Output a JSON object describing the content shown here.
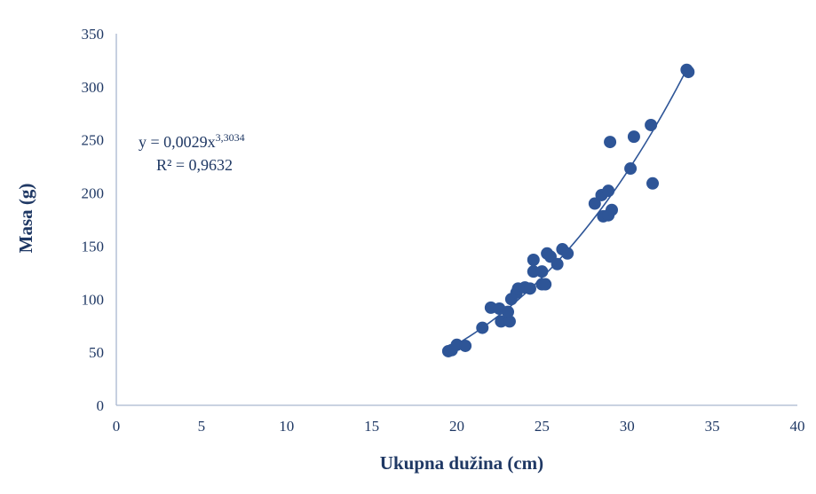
{
  "chart_data": {
    "type": "scatter",
    "title": "",
    "xlabel": "Ukupna dužina (cm)",
    "ylabel": "Masa (g)",
    "xlim": [
      0,
      40
    ],
    "ylim": [
      0,
      350
    ],
    "x_ticks": [
      0,
      5,
      10,
      15,
      20,
      25,
      30,
      35,
      40
    ],
    "y_ticks": [
      0,
      50,
      100,
      150,
      200,
      250,
      300,
      350
    ],
    "grid": false,
    "legend": "none",
    "marker_color": "#2e5597",
    "axis_color": "#a9b7cf",
    "text_color": "#1f3864",
    "series": [
      {
        "type": "scatter",
        "points": [
          [
            19.5,
            51
          ],
          [
            19.7,
            52
          ],
          [
            20.0,
            57
          ],
          [
            20.5,
            56
          ],
          [
            21.5,
            73
          ],
          [
            22.0,
            92
          ],
          [
            22.5,
            91
          ],
          [
            22.6,
            79
          ],
          [
            23.1,
            79
          ],
          [
            23.0,
            88
          ],
          [
            23.2,
            100
          ],
          [
            23.5,
            106
          ],
          [
            23.6,
            110
          ],
          [
            24.0,
            111
          ],
          [
            24.3,
            110
          ],
          [
            24.5,
            126
          ],
          [
            24.5,
            137
          ],
          [
            25.0,
            114
          ],
          [
            25.0,
            126
          ],
          [
            25.2,
            114
          ],
          [
            25.3,
            143
          ],
          [
            25.5,
            140
          ],
          [
            25.9,
            133
          ],
          [
            26.2,
            147
          ],
          [
            26.5,
            143
          ],
          [
            28.1,
            190
          ],
          [
            28.5,
            198
          ],
          [
            28.6,
            178
          ],
          [
            28.9,
            202
          ],
          [
            28.9,
            179
          ],
          [
            29.1,
            184
          ],
          [
            29.0,
            248
          ],
          [
            30.2,
            223
          ],
          [
            30.4,
            253
          ],
          [
            31.4,
            264
          ],
          [
            31.5,
            209
          ],
          [
            33.5,
            316
          ],
          [
            33.6,
            314
          ]
        ]
      }
    ],
    "trendline": {
      "type": "power",
      "a": 0.0029,
      "b": 3.3034,
      "x_range": [
        19.3,
        33.6
      ],
      "equation_prefix": "y = 0,0029x",
      "equation_exponent": "3,3034",
      "r_squared_label": "R² = 0,9632"
    }
  }
}
